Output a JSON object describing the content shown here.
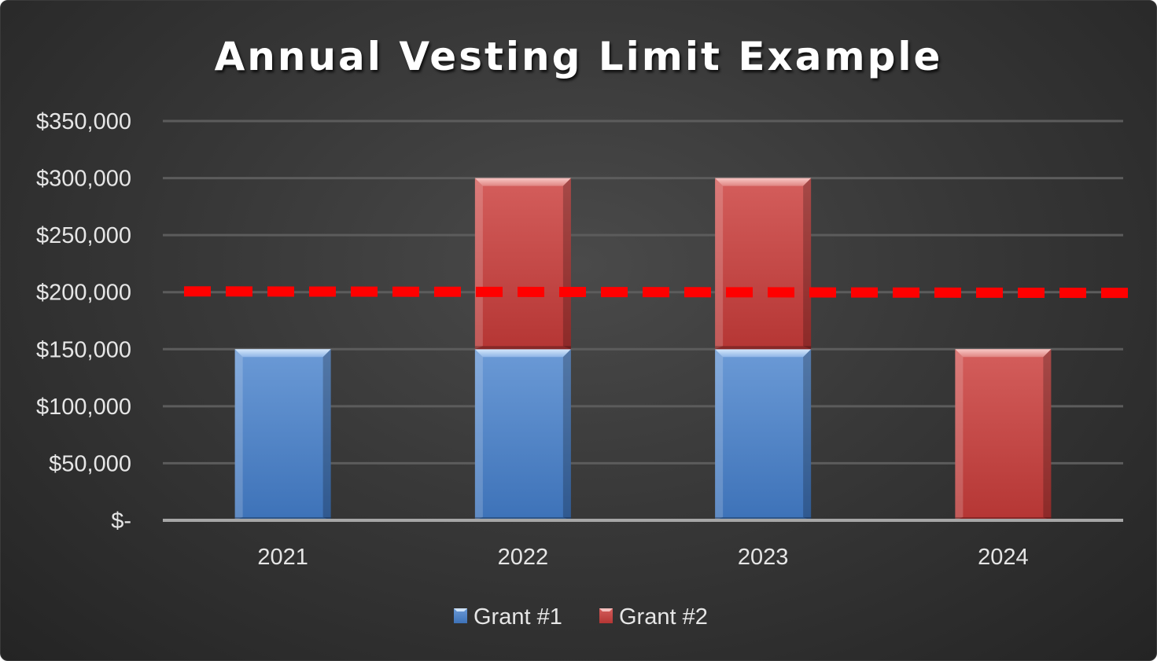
{
  "chart_data": {
    "type": "bar",
    "stacked": true,
    "title": "Annual Vesting Limit Example",
    "xlabel": "",
    "ylabel": "",
    "categories": [
      "2021",
      "2022",
      "2023",
      "2024"
    ],
    "series": [
      {
        "name": "Grant #1",
        "values": [
          150000,
          150000,
          150000,
          0
        ],
        "color": "#4a7fc4"
      },
      {
        "name": "Grant #2",
        "values": [
          0,
          150000,
          150000,
          150000
        ],
        "color": "#c8403e"
      }
    ],
    "y_ticks": [
      "$-",
      "$50,000",
      "$100,000",
      "$150,000",
      "$200,000",
      "$250,000",
      "$300,000",
      "$350,000"
    ],
    "ylim": [
      0,
      350000
    ],
    "limit_line": {
      "value": 200000,
      "color": "#ff0000",
      "style": "dashed"
    },
    "grid": true,
    "legend": "bottom-center"
  }
}
